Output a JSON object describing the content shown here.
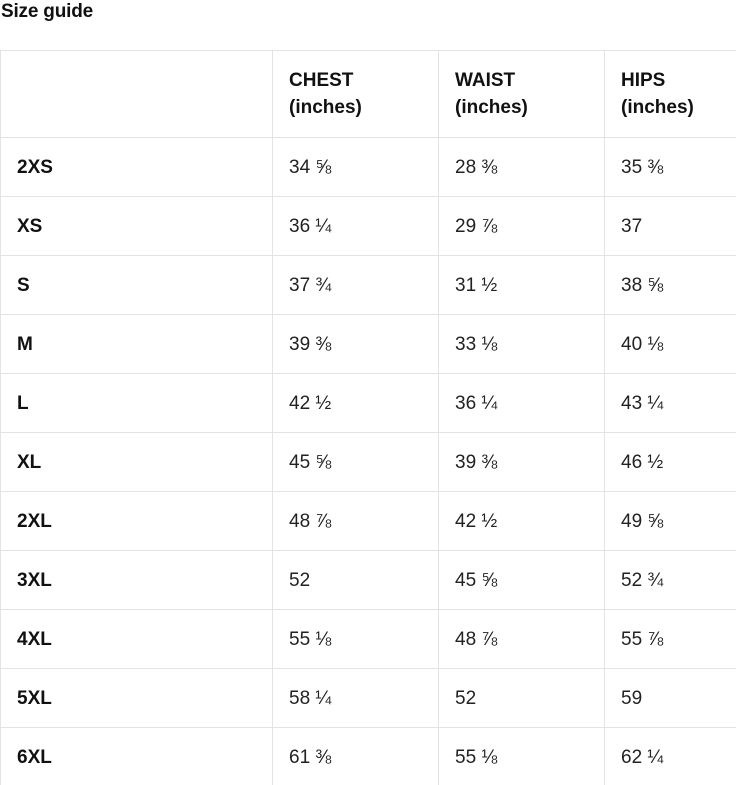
{
  "page": {
    "title": "Size guide"
  },
  "colors": {
    "border": "#e3e3e3",
    "title_text": "#111111",
    "value_text": "#222222",
    "background": "#ffffff"
  },
  "table": {
    "columns": [
      {
        "line1": "CHEST",
        "line2": "(inches)"
      },
      {
        "line1": "WAIST",
        "line2": "(inches)"
      },
      {
        "line1": "HIPS",
        "line2": "(inches)"
      }
    ],
    "rows": [
      {
        "size": "2XS",
        "chest": "34 ⅝",
        "waist": "28 ⅜",
        "hips": "35 ⅜"
      },
      {
        "size": "XS",
        "chest": "36 ¼",
        "waist": "29 ⅞",
        "hips": "37"
      },
      {
        "size": "S",
        "chest": "37 ¾",
        "waist": "31 ½",
        "hips": "38 ⅝"
      },
      {
        "size": "M",
        "chest": "39 ⅜",
        "waist": "33 ⅛",
        "hips": "40 ⅛"
      },
      {
        "size": "L",
        "chest": "42 ½",
        "waist": "36 ¼",
        "hips": "43 ¼"
      },
      {
        "size": "XL",
        "chest": "45 ⅝",
        "waist": "39 ⅜",
        "hips": "46 ½"
      },
      {
        "size": "2XL",
        "chest": "48 ⅞",
        "waist": "42 ½",
        "hips": "49 ⅝"
      },
      {
        "size": "3XL",
        "chest": "52",
        "waist": "45 ⅝",
        "hips": "52 ¾"
      },
      {
        "size": "4XL",
        "chest": "55 ⅛",
        "waist": "48 ⅞",
        "hips": "55 ⅞"
      },
      {
        "size": "5XL",
        "chest": "58 ¼",
        "waist": "52",
        "hips": "59"
      },
      {
        "size": "6XL",
        "chest": "61 ⅜",
        "waist": "55 ⅛",
        "hips": "62 ¼"
      }
    ]
  }
}
